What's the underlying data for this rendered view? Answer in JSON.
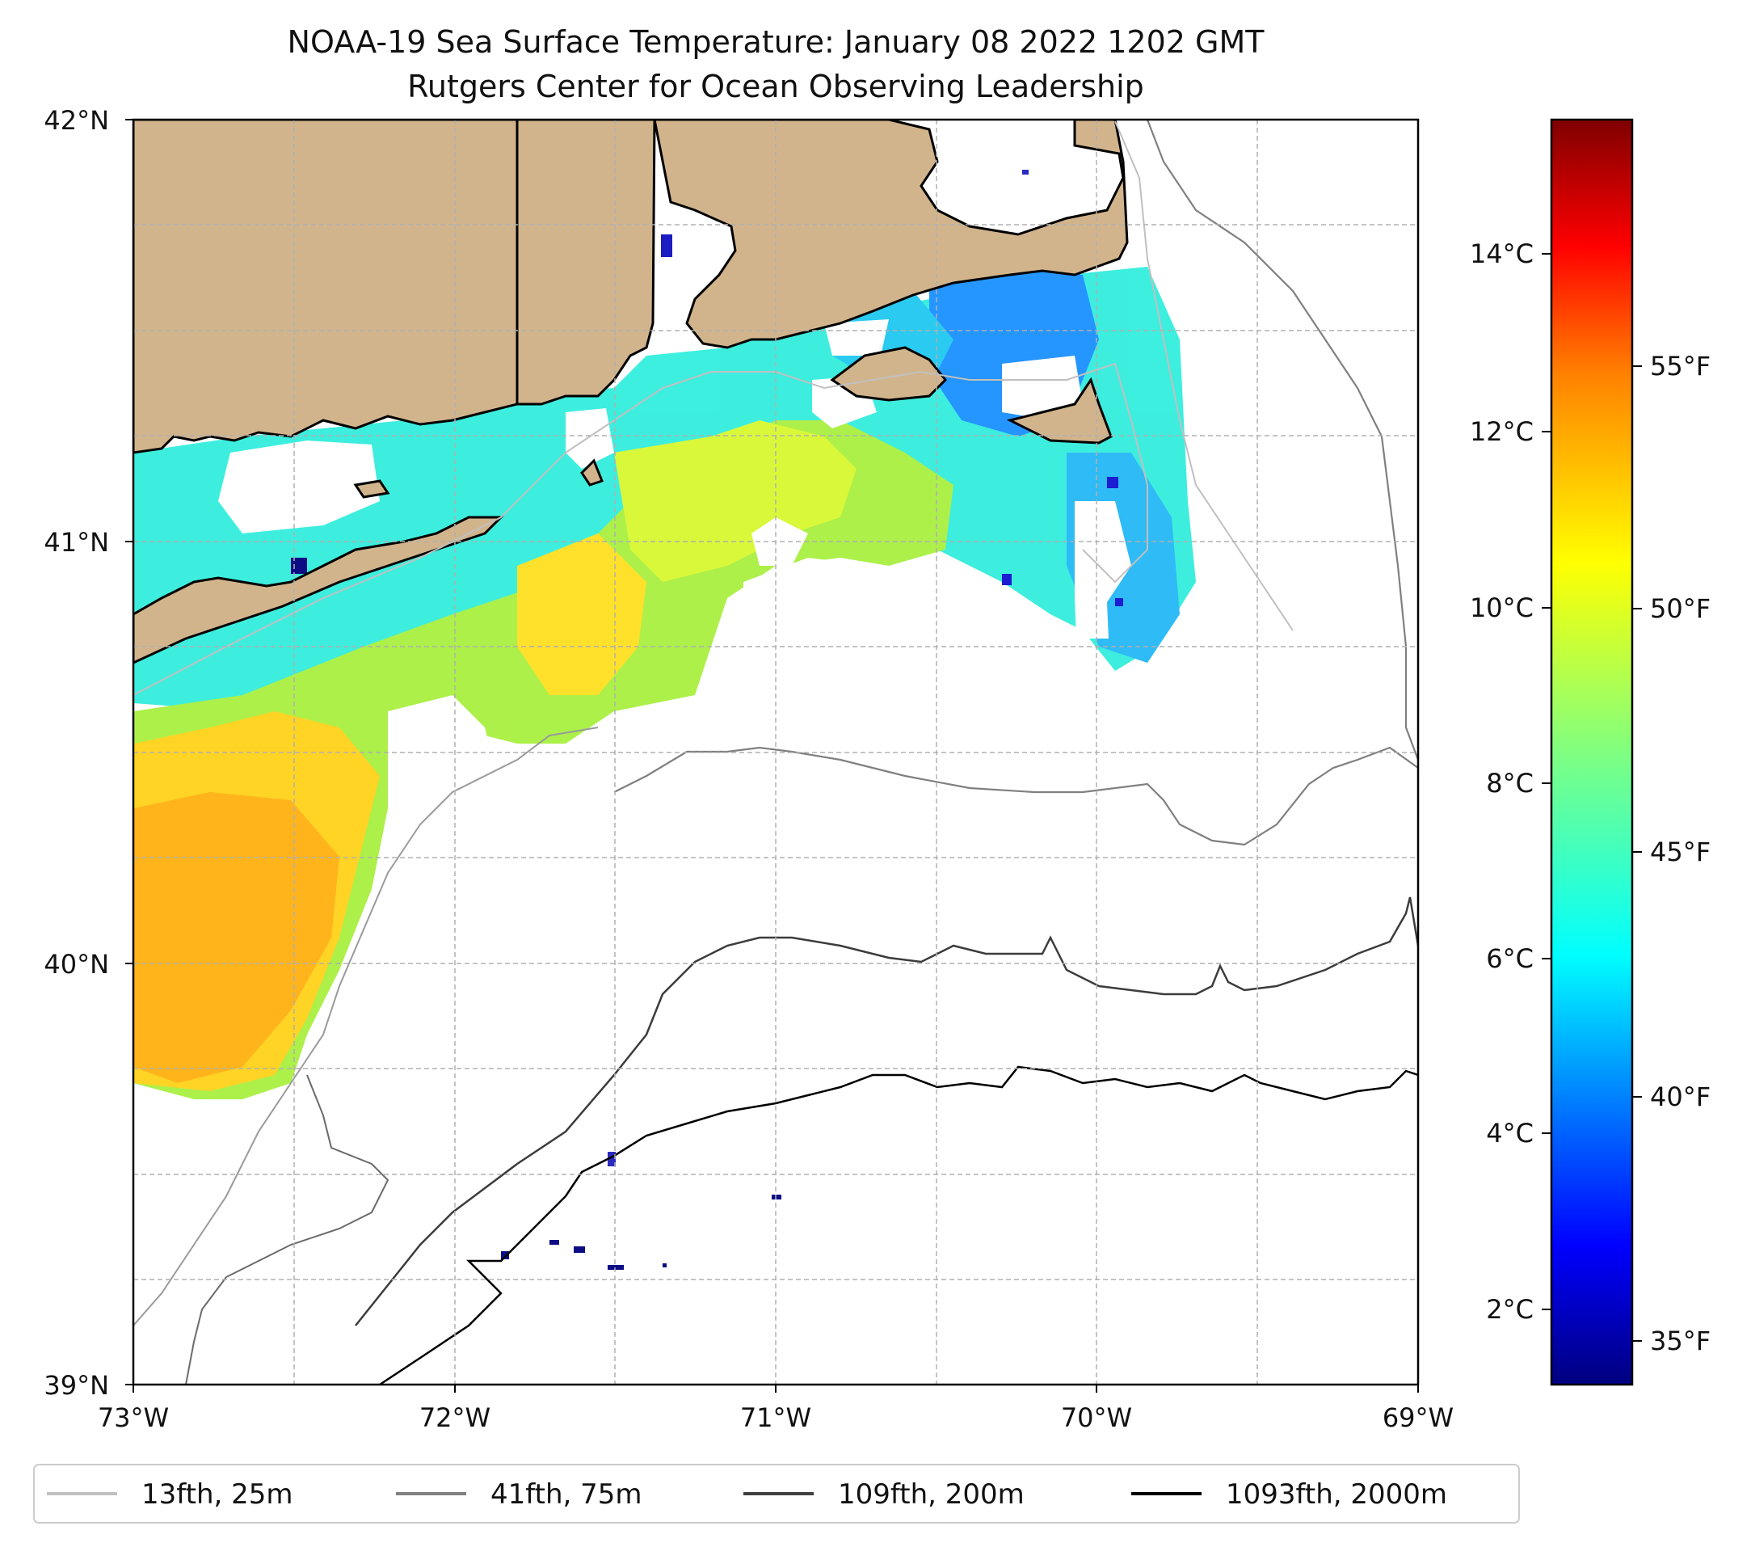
{
  "title": {
    "line1": "NOAA-19 Sea Surface Temperature: January 08 2022 1202 GMT",
    "line2": "Rutgers Center for Ocean Observing Leadership"
  },
  "map": {
    "lat_labels": [
      "42°N",
      "41°N",
      "40°N",
      "39°N"
    ],
    "lon_labels": [
      "73°W",
      "72°W",
      "71°W",
      "70°W",
      "69°W"
    ],
    "lat_range": [
      39,
      42
    ],
    "lon_range": [
      -73,
      -69
    ]
  },
  "colorbar": {
    "celsius_labels": [
      "14°C",
      "12°C",
      "10°C",
      "8°C",
      "6°C",
      "4°C",
      "2°C"
    ],
    "fahrenheit_labels": [
      "55°F",
      "50°F",
      "45°F",
      "40°F",
      "35°F"
    ],
    "cmap": "jet",
    "colors": [
      "#00007f",
      "#0000ff",
      "#0080ff",
      "#00ffff",
      "#80ff80",
      "#ffff00",
      "#ff8000",
      "#ff0000",
      "#7f0000"
    ]
  },
  "legend": [
    {
      "label": "13fth, 25m",
      "color": "#c0c0c0"
    },
    {
      "label": "41fth, 75m",
      "color": "#808080"
    },
    {
      "label": "109fth, 200m",
      "color": "#404040"
    },
    {
      "label": "1093fth, 2000m",
      "color": "#000000"
    }
  ],
  "palette": {
    "land": "#d2b48c",
    "coast": "#000000",
    "grid": "#b0b0b0"
  }
}
